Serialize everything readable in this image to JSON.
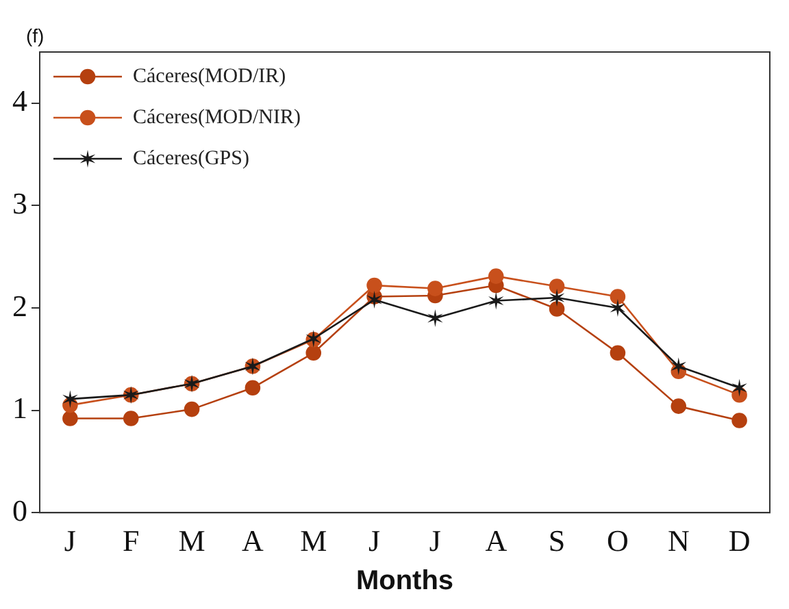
{
  "chart_data": {
    "type": "line",
    "title": "(f)",
    "xlabel": "Months",
    "categories": [
      "J",
      "F",
      "M",
      "A",
      "M",
      "J",
      "J",
      "A",
      "S",
      "O",
      "N",
      "D"
    ],
    "series": [
      {
        "name": "Cáceres(MOD/IR)",
        "color": "#b5400f",
        "marker": "circle",
        "values": [
          0.92,
          0.92,
          1.01,
          1.22,
          1.56,
          2.11,
          2.12,
          2.22,
          1.99,
          1.56,
          1.04,
          0.9
        ]
      },
      {
        "name": "Cáceres(MOD/NIR)",
        "color": "#c8501c",
        "marker": "circle",
        "values": [
          1.05,
          1.15,
          1.26,
          1.43,
          1.69,
          2.22,
          2.19,
          2.31,
          2.21,
          2.11,
          1.38,
          1.15
        ]
      },
      {
        "name": "Cáceres(GPS)",
        "color": "#1a1a1a",
        "marker": "cross",
        "values": [
          1.11,
          1.15,
          1.26,
          1.43,
          1.7,
          2.08,
          1.9,
          2.07,
          2.1,
          2.0,
          1.43,
          1.22
        ]
      }
    ],
    "ylim": [
      0,
      4.5
    ],
    "yticks": [
      0,
      1,
      2,
      3,
      4
    ],
    "grid": false,
    "legend": "top left"
  }
}
